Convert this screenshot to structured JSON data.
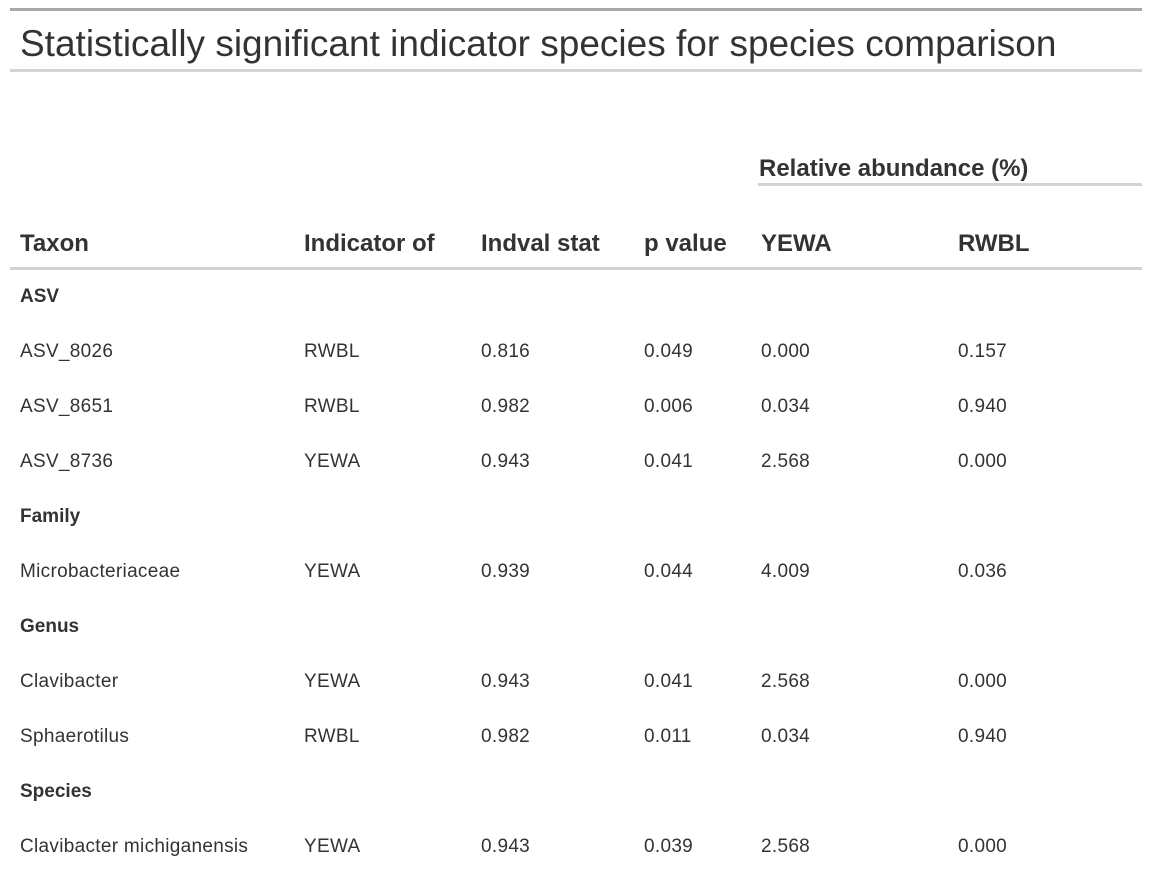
{
  "table": {
    "title": "Statistically significant indicator species for species comparison",
    "spanner_label": "Relative abundance (%)",
    "columns": [
      "Taxon",
      "Indicator of",
      "Indval stat",
      "p value",
      "YEWA",
      "RWBL"
    ],
    "groups": [
      {
        "label": "ASV",
        "rows": [
          {
            "taxon": "ASV_8026",
            "indicator": "RWBL",
            "indval": "0.816",
            "p": "0.049",
            "yewa": "0.000",
            "rwbl": "0.157"
          },
          {
            "taxon": "ASV_8651",
            "indicator": "RWBL",
            "indval": "0.982",
            "p": "0.006",
            "yewa": "0.034",
            "rwbl": "0.940"
          },
          {
            "taxon": "ASV_8736",
            "indicator": "YEWA",
            "indval": "0.943",
            "p": "0.041",
            "yewa": "2.568",
            "rwbl": "0.000"
          }
        ]
      },
      {
        "label": "Family",
        "rows": [
          {
            "taxon": "Microbacteriaceae",
            "indicator": "YEWA",
            "indval": "0.939",
            "p": "0.044",
            "yewa": "4.009",
            "rwbl": "0.036"
          }
        ]
      },
      {
        "label": "Genus",
        "rows": [
          {
            "taxon": "Clavibacter",
            "indicator": "YEWA",
            "indval": "0.943",
            "p": "0.041",
            "yewa": "2.568",
            "rwbl": "0.000"
          },
          {
            "taxon": "Sphaerotilus",
            "indicator": "RWBL",
            "indval": "0.982",
            "p": "0.011",
            "yewa": "0.034",
            "rwbl": "0.940"
          }
        ]
      },
      {
        "label": "Species",
        "rows": [
          {
            "taxon": "Clavibacter michiganensis",
            "indicator": "YEWA",
            "indval": "0.943",
            "p": "0.039",
            "yewa": "2.568",
            "rwbl": "0.000"
          }
        ]
      }
    ]
  }
}
